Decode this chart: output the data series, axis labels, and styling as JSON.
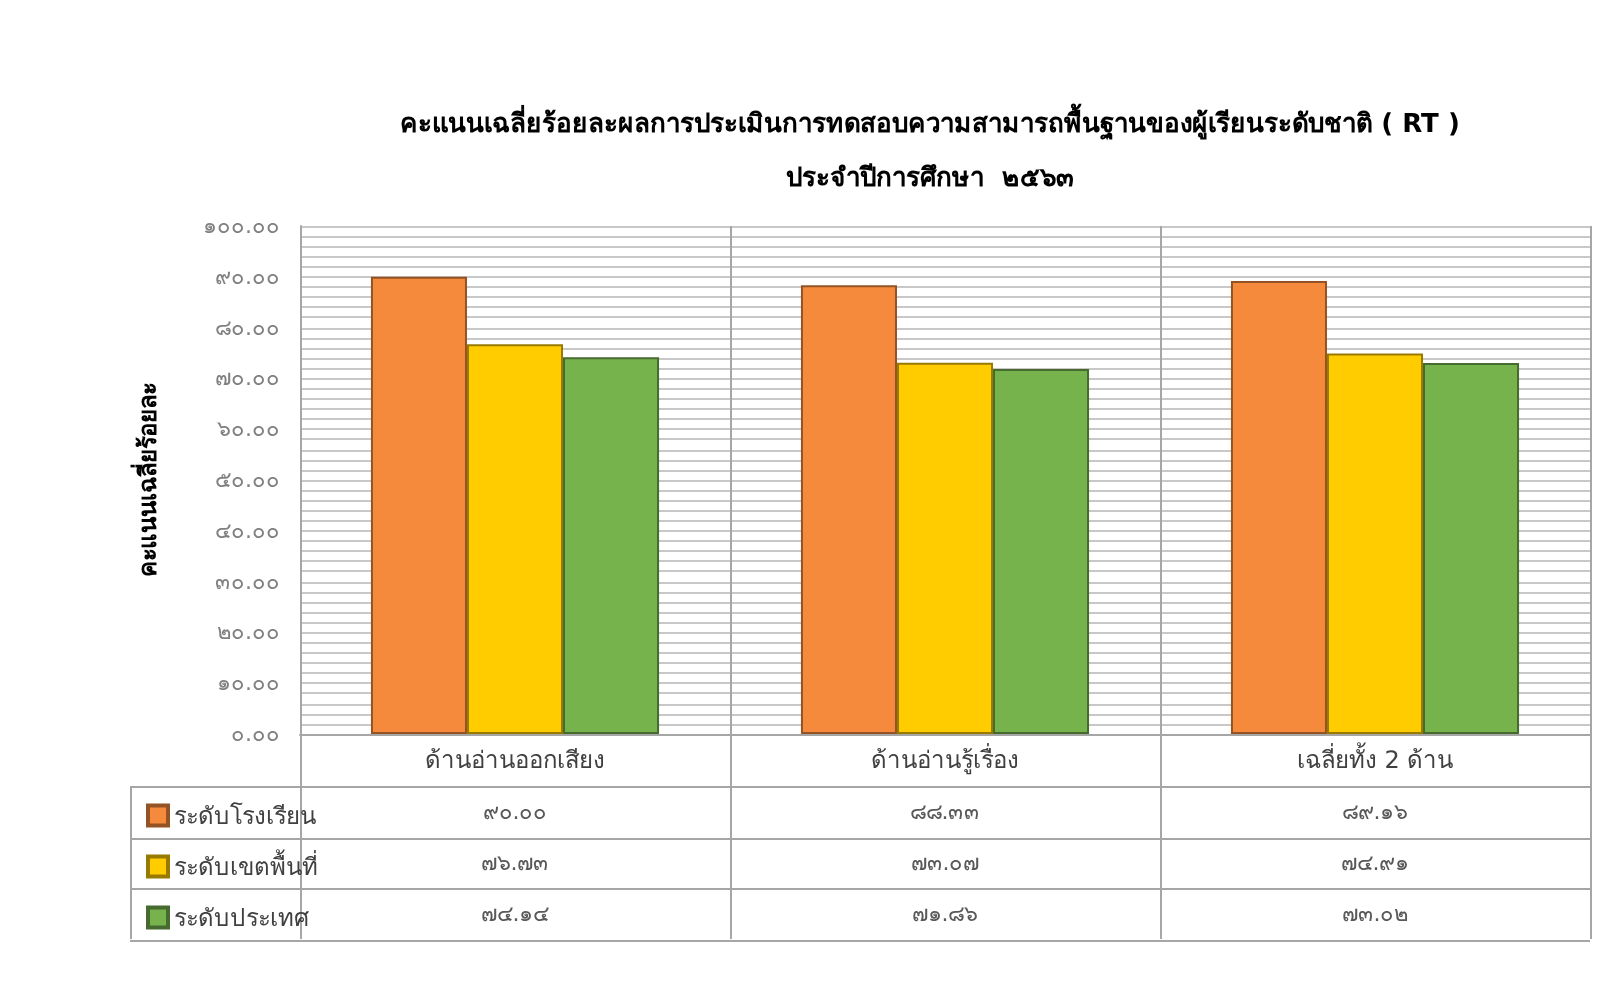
{
  "chart_data": {
    "type": "bar",
    "title": "คะแนนเฉลี่ยร้อยละผลการประเมินการทดสอบความสามารถพื้นฐานของผู้เรียนระดับชาติ ( RT )",
    "subtitle": "ประจำปีการศึกษา  ๒๕๖๓",
    "ylabel": "คะแนนเฉลี่ยร้อยละ",
    "categories": [
      "ด้านอ่านออกเสียง",
      "ด้านอ่านรู้เรื่อง",
      "เฉลี่ยทั้ง 2 ด้าน"
    ],
    "series": [
      {
        "name": "ระดับโรงเรียน",
        "color": "#f68a3c",
        "values": [
          90.0,
          88.33,
          89.16
        ],
        "value_labels": [
          "๙๐.๐๐",
          "๘๘.๓๓",
          "๘๙.๑๖"
        ]
      },
      {
        "name": "ระดับเขตพื้นที่",
        "color": "#ffcc00",
        "values": [
          76.73,
          73.07,
          74.91
        ],
        "value_labels": [
          "๗๖.๗๓",
          "๗๓.๐๗",
          "๗๔.๙๑"
        ]
      },
      {
        "name": "ระดับประเทศ",
        "color": "#77b34c",
        "values": [
          74.14,
          71.86,
          73.02
        ],
        "value_labels": [
          "๗๔.๑๔",
          "๗๑.๘๖",
          "๗๓.๐๒"
        ]
      }
    ],
    "ylim": [
      0,
      100
    ],
    "yticks": [
      {
        "value": 0,
        "label": "๐.๐๐"
      },
      {
        "value": 2,
        "label": null
      },
      {
        "value": 4,
        "label": null
      },
      {
        "value": 6,
        "label": null
      },
      {
        "value": 8,
        "label": null
      },
      {
        "value": 10,
        "label": "๑๐.๐๐"
      },
      {
        "value": 12,
        "label": null
      },
      {
        "value": 14,
        "label": null
      },
      {
        "value": 16,
        "label": null
      },
      {
        "value": 18,
        "label": null
      },
      {
        "value": 20,
        "label": "๒๐.๐๐"
      },
      {
        "value": 22,
        "label": null
      },
      {
        "value": 24,
        "label": null
      },
      {
        "value": 26,
        "label": null
      },
      {
        "value": 28,
        "label": null
      },
      {
        "value": 30,
        "label": "๓๐.๐๐"
      },
      {
        "value": 32,
        "label": null
      },
      {
        "value": 34,
        "label": null
      },
      {
        "value": 36,
        "label": null
      },
      {
        "value": 38,
        "label": null
      },
      {
        "value": 40,
        "label": "๔๐.๐๐"
      },
      {
        "value": 42,
        "label": null
      },
      {
        "value": 44,
        "label": null
      },
      {
        "value": 46,
        "label": null
      },
      {
        "value": 48,
        "label": null
      },
      {
        "value": 50,
        "label": "๕๐.๐๐"
      },
      {
        "value": 52,
        "label": null
      },
      {
        "value": 54,
        "label": null
      },
      {
        "value": 56,
        "label": null
      },
      {
        "value": 58,
        "label": null
      },
      {
        "value": 60,
        "label": "๖๐.๐๐"
      },
      {
        "value": 62,
        "label": null
      },
      {
        "value": 64,
        "label": null
      },
      {
        "value": 66,
        "label": null
      },
      {
        "value": 68,
        "label": null
      },
      {
        "value": 70,
        "label": "๗๐.๐๐"
      },
      {
        "value": 72,
        "label": null
      },
      {
        "value": 74,
        "label": null
      },
      {
        "value": 76,
        "label": null
      },
      {
        "value": 78,
        "label": null
      },
      {
        "value": 80,
        "label": "๘๐.๐๐"
      },
      {
        "value": 82,
        "label": null
      },
      {
        "value": 84,
        "label": null
      },
      {
        "value": 86,
        "label": null
      },
      {
        "value": 88,
        "label": null
      },
      {
        "value": 90,
        "label": "๙๐.๐๐"
      },
      {
        "value": 92,
        "label": null
      },
      {
        "value": 94,
        "label": null
      },
      {
        "value": 96,
        "label": null
      },
      {
        "value": 98,
        "label": null
      },
      {
        "value": 100,
        "label": "๑๐๐.๐๐"
      }
    ],
    "grid": true,
    "legend": "bottom left"
  }
}
